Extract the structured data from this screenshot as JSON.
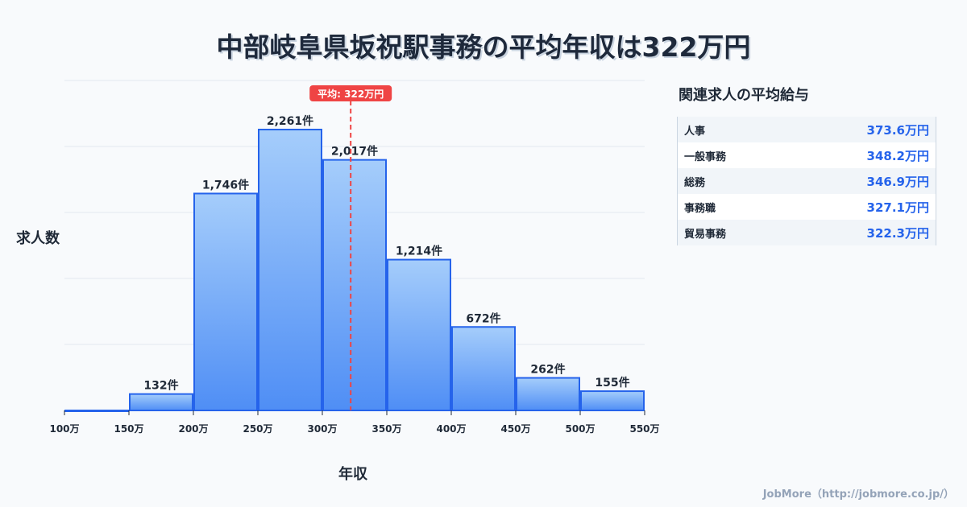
{
  "title": "中部岐阜県坂祝駅事務の平均年収は322万円",
  "chart_data": {
    "type": "bar",
    "title": "中部岐阜県坂祝駅事務の平均年収は322万円",
    "xlabel": "年収",
    "ylabel": "求人数",
    "x_ticks": [
      "100万",
      "150万",
      "200万",
      "250万",
      "300万",
      "350万",
      "400万",
      "450万",
      "500万",
      "550万"
    ],
    "bins": [
      [
        100,
        150
      ],
      [
        150,
        200
      ],
      [
        200,
        250
      ],
      [
        250,
        300
      ],
      [
        300,
        350
      ],
      [
        350,
        400
      ],
      [
        400,
        450
      ],
      [
        450,
        500
      ],
      [
        500,
        550
      ]
    ],
    "values": [
      0,
      132,
      1746,
      2261,
      2017,
      1214,
      672,
      262,
      155
    ],
    "labels": [
      "",
      "132件",
      "1,746件",
      "2,261件",
      "2,017件",
      "1,214件",
      "672件",
      "262件",
      "155件"
    ],
    "xlim": [
      100,
      550
    ],
    "ylim": [
      0,
      2656
    ],
    "average": 322,
    "average_label": "平均: 322万円",
    "bar_color": "#3b82f6",
    "avg_color": "#ef4444"
  },
  "side": {
    "title": "関連求人の平均給与",
    "rows": [
      {
        "label": "人事",
        "value": "373.6万円"
      },
      {
        "label": "一般事務",
        "value": "348.2万円"
      },
      {
        "label": "総務",
        "value": "346.9万円"
      },
      {
        "label": "事務職",
        "value": "327.1万円"
      },
      {
        "label": "貿易事務",
        "value": "322.3万円"
      }
    ]
  },
  "footer": "JobMore（http://jobmore.co.jp/）"
}
